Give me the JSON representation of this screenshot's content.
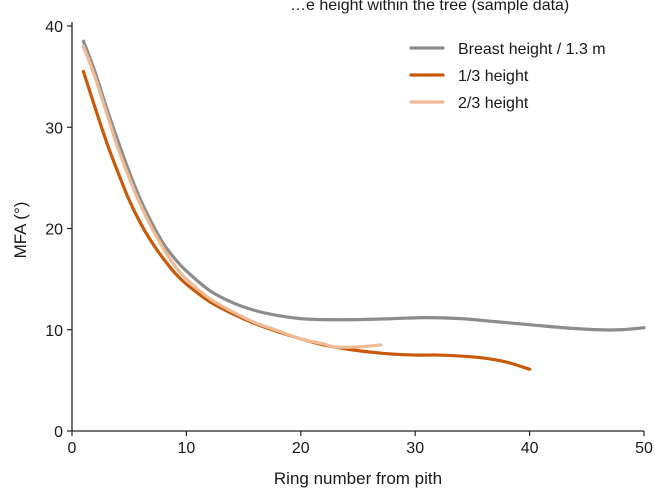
{
  "chart_data": {
    "type": "line",
    "title": "…e height within the tree (sample data)",
    "xlabel": "Ring number from pith",
    "ylabel": "MFA (°)",
    "xlim": [
      0,
      50
    ],
    "ylim": [
      0,
      40
    ],
    "xticks": [
      0,
      10,
      20,
      30,
      40,
      50
    ],
    "yticks": [
      0,
      10,
      20,
      30,
      40
    ],
    "grid": false,
    "legend_position": "top-right",
    "series": [
      {
        "name": "Breast height / 1.3 m",
        "color": "#8c8c8c",
        "points": [
          [
            1,
            38.5
          ],
          [
            2,
            35.5
          ],
          [
            3,
            32.0
          ],
          [
            4,
            28.7
          ],
          [
            5,
            25.6
          ],
          [
            6,
            22.8
          ],
          [
            7,
            20.5
          ],
          [
            8,
            18.5
          ],
          [
            9,
            17.0
          ],
          [
            10,
            15.8
          ],
          [
            12,
            13.9
          ],
          [
            14,
            12.7
          ],
          [
            16,
            11.9
          ],
          [
            18,
            11.4
          ],
          [
            20,
            11.1
          ],
          [
            22,
            11.0
          ],
          [
            25,
            11.0
          ],
          [
            28,
            11.1
          ],
          [
            31,
            11.2
          ],
          [
            34,
            11.1
          ],
          [
            37,
            10.8
          ],
          [
            40,
            10.5
          ],
          [
            43,
            10.2
          ],
          [
            46,
            10.0
          ],
          [
            48,
            10.0
          ],
          [
            50,
            10.2
          ]
        ]
      },
      {
        "name": "1/3 height",
        "color": "#c85a0a",
        "points": [
          [
            1,
            35.5
          ],
          [
            2,
            32.0
          ],
          [
            3,
            28.6
          ],
          [
            4,
            25.6
          ],
          [
            5,
            22.8
          ],
          [
            6,
            20.5
          ],
          [
            7,
            18.6
          ],
          [
            8,
            17.0
          ],
          [
            9,
            15.6
          ],
          [
            10,
            14.5
          ],
          [
            12,
            12.8
          ],
          [
            14,
            11.6
          ],
          [
            16,
            10.6
          ],
          [
            18,
            9.8
          ],
          [
            20,
            9.1
          ],
          [
            22,
            8.5
          ],
          [
            24,
            8.1
          ],
          [
            26,
            7.8
          ],
          [
            28,
            7.6
          ],
          [
            30,
            7.5
          ],
          [
            32,
            7.5
          ],
          [
            34,
            7.4
          ],
          [
            36,
            7.2
          ],
          [
            38,
            6.8
          ],
          [
            40,
            6.1
          ]
        ]
      },
      {
        "name": "2/3 height",
        "color": "#efbb96",
        "points": [
          [
            1,
            38.0
          ],
          [
            2,
            35.0
          ],
          [
            3,
            31.5
          ],
          [
            4,
            28.0
          ],
          [
            5,
            25.0
          ],
          [
            6,
            22.3
          ],
          [
            7,
            20.0
          ],
          [
            8,
            18.0
          ],
          [
            9,
            16.3
          ],
          [
            10,
            15.0
          ],
          [
            12,
            13.1
          ],
          [
            14,
            11.8
          ],
          [
            16,
            10.7
          ],
          [
            18,
            9.9
          ],
          [
            20,
            9.1
          ],
          [
            22,
            8.6
          ],
          [
            23,
            8.3
          ],
          [
            25,
            8.3
          ],
          [
            27,
            8.5
          ]
        ]
      }
    ]
  }
}
